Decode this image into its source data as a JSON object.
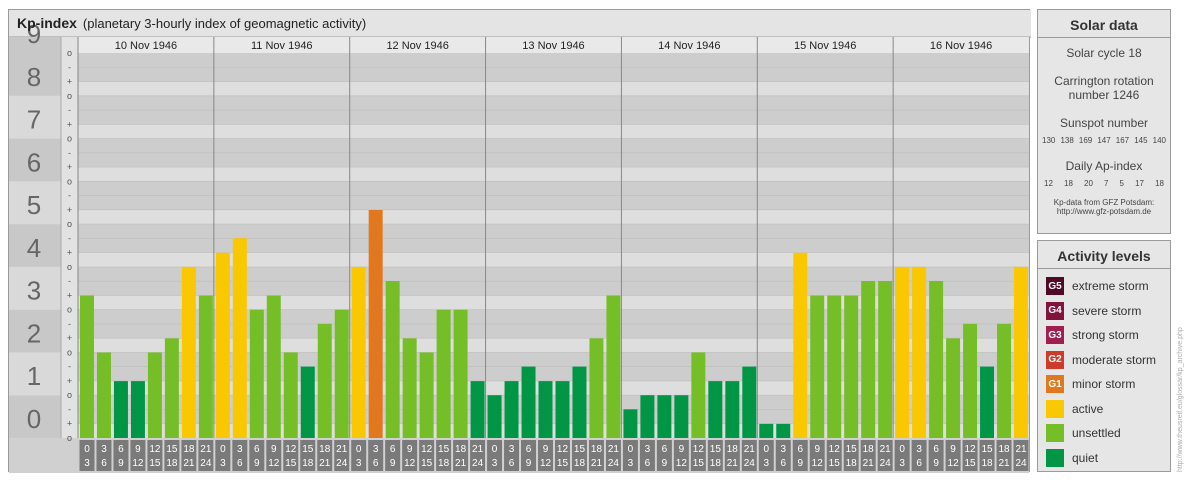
{
  "title": "Kp-index",
  "subtitle": "(planetary 3-hourly index of geomagnetic activity)",
  "chart_data": {
    "type": "bar",
    "ylim": [
      0,
      9
    ],
    "y_ticks": [
      "0",
      "1",
      "2",
      "3",
      "4",
      "5",
      "6",
      "7",
      "8",
      "9"
    ],
    "minor_ticks": [
      "o",
      "+",
      "-",
      "o",
      "+",
      "-",
      "o",
      "+",
      "-",
      "o",
      "+",
      "-",
      "o",
      "+",
      "-",
      "o",
      "+",
      "-",
      "o",
      "+",
      "-",
      "o",
      "+",
      "-",
      "o",
      "+",
      "-",
      "o"
    ],
    "days": [
      "10 Nov 1946",
      "11 Nov 1946",
      "12 Nov 1946",
      "13 Nov 1946",
      "14 Nov 1946",
      "15 Nov 1946",
      "16 Nov 1946"
    ],
    "interval_top": [
      "0",
      "3",
      "6",
      "9",
      "12",
      "15",
      "18",
      "21"
    ],
    "interval_bottom": [
      "3",
      "6",
      "9",
      "12",
      "15",
      "18",
      "21",
      "24"
    ],
    "values": [
      [
        3.33,
        2.0,
        1.33,
        1.33,
        2.0,
        2.33,
        4.0,
        3.33
      ],
      [
        4.33,
        4.67,
        3.0,
        3.33,
        2.0,
        1.67,
        2.67,
        3.0
      ],
      [
        4.0,
        5.33,
        3.67,
        2.33,
        2.0,
        3.0,
        3.0,
        1.33
      ],
      [
        1.0,
        1.33,
        1.67,
        1.33,
        1.33,
        1.67,
        2.33,
        3.33
      ],
      [
        0.67,
        1.0,
        1.0,
        1.0,
        2.0,
        1.33,
        1.33,
        1.67
      ],
      [
        0.33,
        0.33,
        4.33,
        3.33,
        3.33,
        3.33,
        3.67,
        3.67
      ],
      [
        4.0,
        4.0,
        3.67,
        2.33,
        2.67,
        1.67,
        2.67,
        4.0
      ]
    ],
    "colors": {
      "quiet": "#009646",
      "unsettled": "#76be28",
      "active": "#fac800",
      "minor_storm": "#e1781e",
      "moderate_storm": "#cd3c28",
      "strong_storm": "#a01e50",
      "severe_storm": "#82143c",
      "extreme_storm": "#500a28"
    },
    "grid": true
  },
  "solar": {
    "title": "Solar data",
    "cycle": "Solar cycle 18",
    "carrington1": "Carrington rotation",
    "carrington2": "number 1246",
    "sunspot_label": "Sunspot number",
    "sunspot_values": [
      "130",
      "138",
      "169",
      "147",
      "167",
      "145",
      "140"
    ],
    "ap_label": "Daily Ap-index",
    "ap_values": [
      "12",
      "18",
      "20",
      "7",
      "5",
      "17",
      "18"
    ],
    "source1": "Kp-data from GFZ Potsdam:",
    "source2": "http://www.gfz-potsdam.de"
  },
  "levels": {
    "title": "Activity levels",
    "items": [
      {
        "badge": "G5",
        "label": "extreme storm",
        "color": "#500a28"
      },
      {
        "badge": "G4",
        "label": "severe storm",
        "color": "#82143c"
      },
      {
        "badge": "G3",
        "label": "strong storm",
        "color": "#a01e50"
      },
      {
        "badge": "G2",
        "label": "moderate storm",
        "color": "#cd3c28"
      },
      {
        "badge": "G1",
        "label": "minor storm",
        "color": "#e1781e"
      },
      {
        "badge": "",
        "label": "active",
        "color": "#fac800"
      },
      {
        "badge": "",
        "label": "unsettled",
        "color": "#76be28"
      },
      {
        "badge": "",
        "label": "quiet",
        "color": "#009646"
      }
    ]
  },
  "credit": "http://www.theusreif.eu/glossar/kp_archive.php"
}
